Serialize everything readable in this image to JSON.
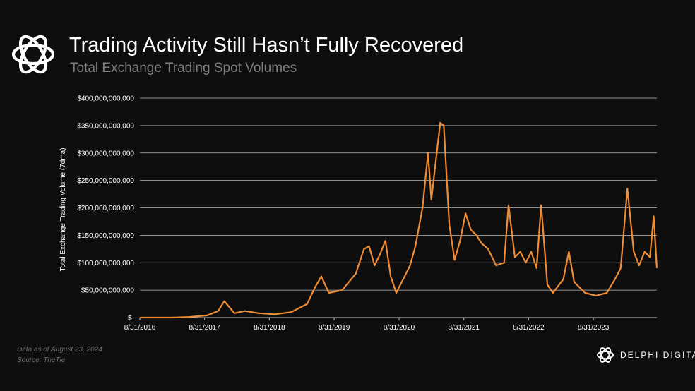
{
  "header": {
    "title": "Trading Activity Still Hasn’t Fully Recovered",
    "subtitle": "Total Exchange Trading Spot Volumes"
  },
  "footer": {
    "note_line1": "Data as of August 23, 2024",
    "note_line2": "Source: TheTie",
    "brand": "DELPHI DIGITAL"
  },
  "icons": {
    "header_logo": "delphi-knot-logo-icon",
    "footer_logo": "delphi-knot-logo-icon"
  },
  "colors": {
    "background": "#0e0e0e",
    "series": "#f08c34",
    "grid": "#bdbdbd",
    "subtitle": "#7f7f7f"
  },
  "chart_data": {
    "type": "line",
    "ylabel": "Total Exchange Trading Volume (7dma)",
    "xlabel": "",
    "ylim": [
      0,
      400000000000
    ],
    "yticks": [
      0,
      50000000000,
      100000000000,
      150000000000,
      200000000000,
      250000000000,
      300000000000,
      350000000000,
      400000000000
    ],
    "ytick_labels": [
      "$-",
      "$50,000,000,000",
      "$100,000,000,000",
      "$150,000,000,000",
      "$200,000,000,000",
      "$250,000,000,000",
      "$300,000,000,000",
      "$350,000,000,000",
      "$400,000,000,000"
    ],
    "xlim": [
      "2016-08-31",
      "2024-08-23"
    ],
    "xticks": [
      "2016-08-31",
      "2017-08-31",
      "2018-08-31",
      "2019-08-31",
      "2020-08-31",
      "2021-08-31",
      "2022-08-31",
      "2023-08-31"
    ],
    "xtick_labels": [
      "8/31/2016",
      "8/31/2017",
      "8/31/2018",
      "8/31/2019",
      "8/31/2020",
      "8/31/2021",
      "8/31/2022",
      "8/31/2023"
    ],
    "grid": "horizontal",
    "legend": "none",
    "series": [
      {
        "color": "#f08c34",
        "points": [
          [
            "2016-08-31",
            0
          ],
          [
            "2017-03-01",
            0
          ],
          [
            "2017-06-01",
            1000000000
          ],
          [
            "2017-09-15",
            4000000000
          ],
          [
            "2017-11-15",
            12000000000
          ],
          [
            "2017-12-20",
            30000000000
          ],
          [
            "2018-01-15",
            20000000000
          ],
          [
            "2018-02-15",
            8000000000
          ],
          [
            "2018-04-15",
            12000000000
          ],
          [
            "2018-07-01",
            8000000000
          ],
          [
            "2018-10-01",
            6000000000
          ],
          [
            "2019-01-01",
            10000000000
          ],
          [
            "2019-04-01",
            25000000000
          ],
          [
            "2019-05-15",
            55000000000
          ],
          [
            "2019-06-20",
            75000000000
          ],
          [
            "2019-08-01",
            45000000000
          ],
          [
            "2019-10-15",
            50000000000
          ],
          [
            "2019-12-31",
            80000000000
          ],
          [
            "2020-02-15",
            125000000000
          ],
          [
            "2020-03-15",
            130000000000
          ],
          [
            "2020-04-15",
            95000000000
          ],
          [
            "2020-05-15",
            115000000000
          ],
          [
            "2020-06-15",
            140000000000
          ],
          [
            "2020-07-15",
            75000000000
          ],
          [
            "2020-08-15",
            45000000000
          ],
          [
            "2020-10-01",
            75000000000
          ],
          [
            "2020-11-01",
            95000000000
          ],
          [
            "2020-12-01",
            130000000000
          ],
          [
            "2021-01-10",
            200000000000
          ],
          [
            "2021-02-10",
            300000000000
          ],
          [
            "2021-03-01",
            215000000000
          ],
          [
            "2021-04-20",
            355000000000
          ],
          [
            "2021-05-10",
            350000000000
          ],
          [
            "2021-06-10",
            170000000000
          ],
          [
            "2021-07-10",
            105000000000
          ],
          [
            "2021-08-10",
            140000000000
          ],
          [
            "2021-09-10",
            190000000000
          ],
          [
            "2021-10-10",
            160000000000
          ],
          [
            "2021-11-10",
            150000000000
          ],
          [
            "2021-12-10",
            135000000000
          ],
          [
            "2022-01-15",
            125000000000
          ],
          [
            "2022-03-01",
            95000000000
          ],
          [
            "2022-04-15",
            100000000000
          ],
          [
            "2022-05-10",
            205000000000
          ],
          [
            "2022-06-15",
            110000000000
          ],
          [
            "2022-07-15",
            120000000000
          ],
          [
            "2022-08-15",
            100000000000
          ],
          [
            "2022-09-15",
            120000000000
          ],
          [
            "2022-10-15",
            90000000000
          ],
          [
            "2022-11-10",
            205000000000
          ],
          [
            "2022-12-15",
            60000000000
          ],
          [
            "2023-01-15",
            45000000000
          ],
          [
            "2023-03-15",
            70000000000
          ],
          [
            "2023-04-15",
            120000000000
          ],
          [
            "2023-05-15",
            65000000000
          ],
          [
            "2023-07-15",
            45000000000
          ],
          [
            "2023-09-15",
            40000000000
          ],
          [
            "2023-11-15",
            45000000000
          ],
          [
            "2023-12-31",
            70000000000
          ],
          [
            "2024-02-01",
            90000000000
          ],
          [
            "2024-03-10",
            235000000000
          ],
          [
            "2024-04-15",
            120000000000
          ],
          [
            "2024-05-15",
            95000000000
          ],
          [
            "2024-06-15",
            120000000000
          ],
          [
            "2024-07-15",
            110000000000
          ],
          [
            "2024-08-05",
            185000000000
          ],
          [
            "2024-08-23",
            90000000000
          ]
        ]
      }
    ]
  }
}
